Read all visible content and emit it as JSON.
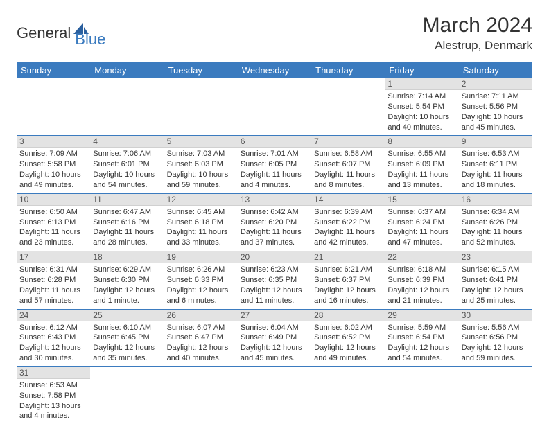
{
  "logo": {
    "part1": "General",
    "part2": "Blue"
  },
  "title": "March 2024",
  "location": "Alestrup, Denmark",
  "header_color": "#3b7bbf",
  "daybar_color": "#e3e3e3",
  "weekdays": [
    "Sunday",
    "Monday",
    "Tuesday",
    "Wednesday",
    "Thursday",
    "Friday",
    "Saturday"
  ],
  "weeks": [
    [
      null,
      null,
      null,
      null,
      null,
      {
        "n": "1",
        "sr": "Sunrise: 7:14 AM",
        "ss": "Sunset: 5:54 PM",
        "dl1": "Daylight: 10 hours",
        "dl2": "and 40 minutes."
      },
      {
        "n": "2",
        "sr": "Sunrise: 7:11 AM",
        "ss": "Sunset: 5:56 PM",
        "dl1": "Daylight: 10 hours",
        "dl2": "and 45 minutes."
      }
    ],
    [
      {
        "n": "3",
        "sr": "Sunrise: 7:09 AM",
        "ss": "Sunset: 5:58 PM",
        "dl1": "Daylight: 10 hours",
        "dl2": "and 49 minutes."
      },
      {
        "n": "4",
        "sr": "Sunrise: 7:06 AM",
        "ss": "Sunset: 6:01 PM",
        "dl1": "Daylight: 10 hours",
        "dl2": "and 54 minutes."
      },
      {
        "n": "5",
        "sr": "Sunrise: 7:03 AM",
        "ss": "Sunset: 6:03 PM",
        "dl1": "Daylight: 10 hours",
        "dl2": "and 59 minutes."
      },
      {
        "n": "6",
        "sr": "Sunrise: 7:01 AM",
        "ss": "Sunset: 6:05 PM",
        "dl1": "Daylight: 11 hours",
        "dl2": "and 4 minutes."
      },
      {
        "n": "7",
        "sr": "Sunrise: 6:58 AM",
        "ss": "Sunset: 6:07 PM",
        "dl1": "Daylight: 11 hours",
        "dl2": "and 8 minutes."
      },
      {
        "n": "8",
        "sr": "Sunrise: 6:55 AM",
        "ss": "Sunset: 6:09 PM",
        "dl1": "Daylight: 11 hours",
        "dl2": "and 13 minutes."
      },
      {
        "n": "9",
        "sr": "Sunrise: 6:53 AM",
        "ss": "Sunset: 6:11 PM",
        "dl1": "Daylight: 11 hours",
        "dl2": "and 18 minutes."
      }
    ],
    [
      {
        "n": "10",
        "sr": "Sunrise: 6:50 AM",
        "ss": "Sunset: 6:13 PM",
        "dl1": "Daylight: 11 hours",
        "dl2": "and 23 minutes."
      },
      {
        "n": "11",
        "sr": "Sunrise: 6:47 AM",
        "ss": "Sunset: 6:16 PM",
        "dl1": "Daylight: 11 hours",
        "dl2": "and 28 minutes."
      },
      {
        "n": "12",
        "sr": "Sunrise: 6:45 AM",
        "ss": "Sunset: 6:18 PM",
        "dl1": "Daylight: 11 hours",
        "dl2": "and 33 minutes."
      },
      {
        "n": "13",
        "sr": "Sunrise: 6:42 AM",
        "ss": "Sunset: 6:20 PM",
        "dl1": "Daylight: 11 hours",
        "dl2": "and 37 minutes."
      },
      {
        "n": "14",
        "sr": "Sunrise: 6:39 AM",
        "ss": "Sunset: 6:22 PM",
        "dl1": "Daylight: 11 hours",
        "dl2": "and 42 minutes."
      },
      {
        "n": "15",
        "sr": "Sunrise: 6:37 AM",
        "ss": "Sunset: 6:24 PM",
        "dl1": "Daylight: 11 hours",
        "dl2": "and 47 minutes."
      },
      {
        "n": "16",
        "sr": "Sunrise: 6:34 AM",
        "ss": "Sunset: 6:26 PM",
        "dl1": "Daylight: 11 hours",
        "dl2": "and 52 minutes."
      }
    ],
    [
      {
        "n": "17",
        "sr": "Sunrise: 6:31 AM",
        "ss": "Sunset: 6:28 PM",
        "dl1": "Daylight: 11 hours",
        "dl2": "and 57 minutes."
      },
      {
        "n": "18",
        "sr": "Sunrise: 6:29 AM",
        "ss": "Sunset: 6:30 PM",
        "dl1": "Daylight: 12 hours",
        "dl2": "and 1 minute."
      },
      {
        "n": "19",
        "sr": "Sunrise: 6:26 AM",
        "ss": "Sunset: 6:33 PM",
        "dl1": "Daylight: 12 hours",
        "dl2": "and 6 minutes."
      },
      {
        "n": "20",
        "sr": "Sunrise: 6:23 AM",
        "ss": "Sunset: 6:35 PM",
        "dl1": "Daylight: 12 hours",
        "dl2": "and 11 minutes."
      },
      {
        "n": "21",
        "sr": "Sunrise: 6:21 AM",
        "ss": "Sunset: 6:37 PM",
        "dl1": "Daylight: 12 hours",
        "dl2": "and 16 minutes."
      },
      {
        "n": "22",
        "sr": "Sunrise: 6:18 AM",
        "ss": "Sunset: 6:39 PM",
        "dl1": "Daylight: 12 hours",
        "dl2": "and 21 minutes."
      },
      {
        "n": "23",
        "sr": "Sunrise: 6:15 AM",
        "ss": "Sunset: 6:41 PM",
        "dl1": "Daylight: 12 hours",
        "dl2": "and 25 minutes."
      }
    ],
    [
      {
        "n": "24",
        "sr": "Sunrise: 6:12 AM",
        "ss": "Sunset: 6:43 PM",
        "dl1": "Daylight: 12 hours",
        "dl2": "and 30 minutes."
      },
      {
        "n": "25",
        "sr": "Sunrise: 6:10 AM",
        "ss": "Sunset: 6:45 PM",
        "dl1": "Daylight: 12 hours",
        "dl2": "and 35 minutes."
      },
      {
        "n": "26",
        "sr": "Sunrise: 6:07 AM",
        "ss": "Sunset: 6:47 PM",
        "dl1": "Daylight: 12 hours",
        "dl2": "and 40 minutes."
      },
      {
        "n": "27",
        "sr": "Sunrise: 6:04 AM",
        "ss": "Sunset: 6:49 PM",
        "dl1": "Daylight: 12 hours",
        "dl2": "and 45 minutes."
      },
      {
        "n": "28",
        "sr": "Sunrise: 6:02 AM",
        "ss": "Sunset: 6:52 PM",
        "dl1": "Daylight: 12 hours",
        "dl2": "and 49 minutes."
      },
      {
        "n": "29",
        "sr": "Sunrise: 5:59 AM",
        "ss": "Sunset: 6:54 PM",
        "dl1": "Daylight: 12 hours",
        "dl2": "and 54 minutes."
      },
      {
        "n": "30",
        "sr": "Sunrise: 5:56 AM",
        "ss": "Sunset: 6:56 PM",
        "dl1": "Daylight: 12 hours",
        "dl2": "and 59 minutes."
      }
    ],
    [
      {
        "n": "31",
        "sr": "Sunrise: 6:53 AM",
        "ss": "Sunset: 7:58 PM",
        "dl1": "Daylight: 13 hours",
        "dl2": "and 4 minutes."
      },
      null,
      null,
      null,
      null,
      null,
      null
    ]
  ]
}
